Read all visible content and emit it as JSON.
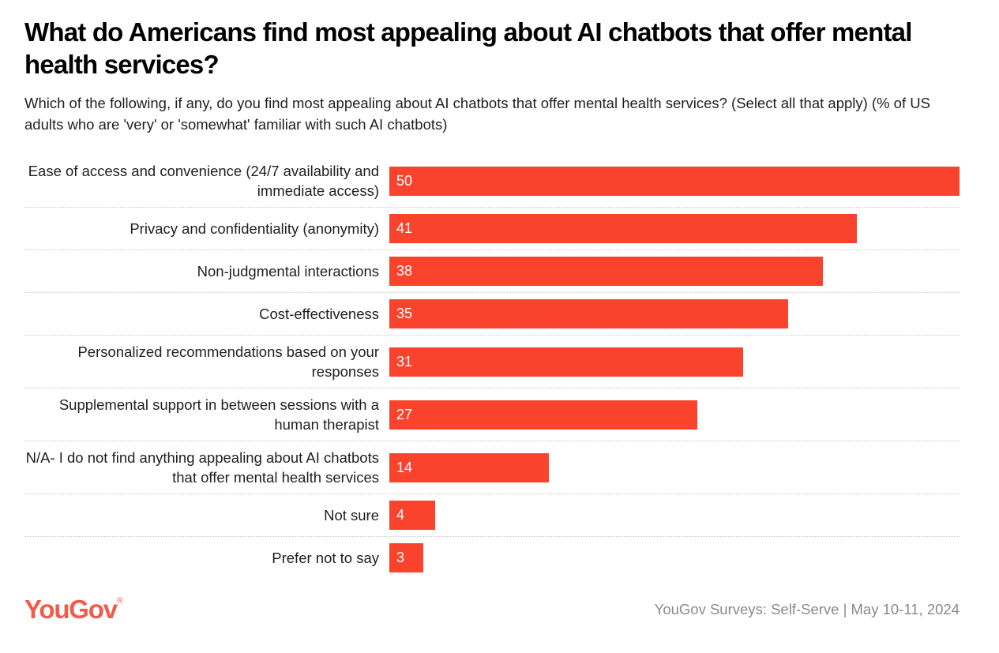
{
  "page": {
    "title": "What do Americans find most appealing about AI chatbots that offer mental health services?",
    "subtitle": "Which of the following, if any, do you find most appealing about AI chatbots that offer mental health services? (Select all that apply) (% of US adults who are 'very' or 'somewhat' familiar with such AI chatbots)"
  },
  "chart_data": {
    "type": "bar",
    "orientation": "horizontal",
    "categories": [
      "Ease of access and convenience (24/7 availability and immediate access)",
      "Privacy and confidentiality (anonymity)",
      "Non-judgmental interactions",
      "Cost-effectiveness",
      "Personalized recommendations based on your responses",
      "Supplemental support in between sessions with a human therapist",
      "N/A- I do not find anything appealing about AI chatbots that offer mental health services",
      "Not sure",
      "Prefer not to say"
    ],
    "values": [
      50,
      41,
      38,
      35,
      31,
      27,
      14,
      4,
      3
    ],
    "unit": "% of US adults familiar with AI mental-health chatbots",
    "xlim": [
      0,
      50
    ],
    "bar_color": "#fa432d",
    "value_label_color": "#ffffff",
    "value_label_position": "inside-left",
    "grid": "dotted row separators",
    "legend": "none",
    "title": "What do Americans find most appealing about AI chatbots that offer mental health services?",
    "xlabel": "",
    "ylabel": ""
  },
  "colors": {
    "bar": "#fa432d",
    "logo": "#f25b4a",
    "footer_text": "#8a8a8a",
    "title_text": "#000000",
    "body_text": "#1f1f1f",
    "separator": "#c9c9c9"
  },
  "footer": {
    "logo_text": "YouGov",
    "registered_mark": "®",
    "source_text": "YouGov Surveys: Self-Serve | May 10-11, 2024"
  }
}
